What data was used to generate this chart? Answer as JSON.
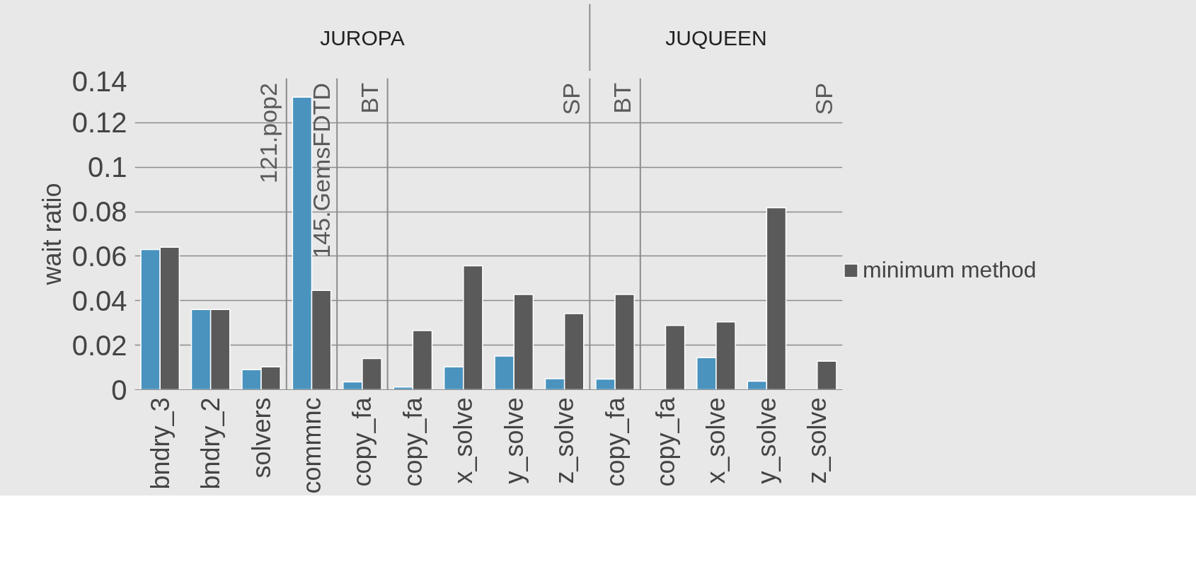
{
  "chart_data": {
    "type": "bar",
    "ylabel": "wait ratio",
    "categories": [
      "bndry_3",
      "bndry_2",
      "solvers",
      "commnc",
      "copy_fa",
      "copy_fa",
      "x_solve",
      "y_solve",
      "z_solve",
      "copy_fa",
      "copy_fa",
      "x_solve",
      "y_solve",
      "z_solve"
    ],
    "series": [
      {
        "color": "#4a93bf",
        "values": [
          0.063,
          0.036,
          0.009,
          0.1315,
          0.0035,
          0.0012,
          0.0103,
          0.0151,
          0.0049,
          0.0048,
          null,
          0.0144,
          0.0038,
          null
        ]
      },
      {
        "name": "minimum method",
        "color": "#5a5a5a",
        "values": [
          0.064,
          0.036,
          0.0103,
          0.0446,
          0.014,
          0.0266,
          0.0557,
          0.0428,
          0.0342,
          0.0428,
          0.0289,
          0.0305,
          0.0818,
          0.0128
        ]
      }
    ],
    "ylim": [
      0,
      0.14
    ],
    "yticks": [
      0,
      0.02,
      0.04,
      0.06,
      0.08,
      0.1,
      0.12,
      0.14
    ],
    "grid": "y",
    "legend": "right",
    "annotations": [
      "JUROPA",
      "JUQUEEN",
      "121.pop2",
      "145.GemsFDTD",
      "BT",
      "SP",
      "BT",
      "SP"
    ]
  }
}
